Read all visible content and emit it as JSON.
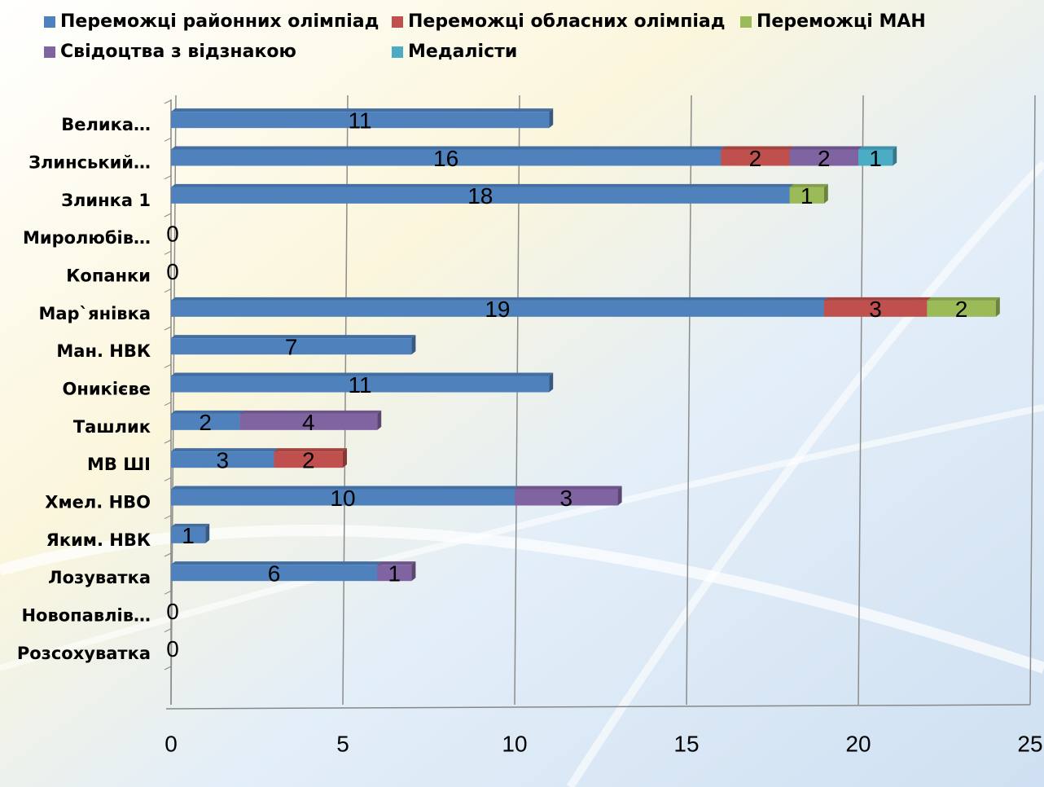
{
  "chart_data": {
    "type": "bar",
    "orientation": "horizontal",
    "stacked": true,
    "categories": [
      "Велика…",
      "Злинський…",
      "Злинка 1",
      "Миролюбів…",
      "Копанки",
      "Мар`янівка",
      "Ман. НВК",
      "Оникієве",
      "Ташлик",
      "МВ ШІ",
      "Хмел. НВО",
      "Яким. НВК",
      "Лозуватка",
      "Новопавлів…",
      "Розсохуватка"
    ],
    "series": [
      {
        "name": "Переможці районних олімпіад",
        "color": "#4f81bd",
        "values": [
          11,
          16,
          18,
          0,
          0,
          19,
          7,
          11,
          2,
          3,
          10,
          1,
          6,
          0,
          0
        ]
      },
      {
        "name": "Переможці обласних олімпіад",
        "color": "#c0504d",
        "values": [
          null,
          2,
          null,
          null,
          null,
          3,
          null,
          null,
          null,
          2,
          null,
          null,
          null,
          null,
          null
        ]
      },
      {
        "name": "Переможці МАН",
        "color": "#9bbb59",
        "values": [
          null,
          null,
          1,
          null,
          null,
          2,
          null,
          null,
          null,
          null,
          null,
          null,
          null,
          null,
          null
        ]
      },
      {
        "name": "Свідоцтва з відзнакою",
        "color": "#8064a2",
        "values": [
          null,
          2,
          null,
          null,
          null,
          null,
          null,
          null,
          4,
          null,
          3,
          null,
          1,
          null,
          null
        ]
      },
      {
        "name": "Медалісти",
        "color": "#4bacc6",
        "values": [
          null,
          1,
          null,
          null,
          null,
          null,
          null,
          null,
          null,
          null,
          null,
          null,
          null,
          null,
          null
        ]
      }
    ],
    "xlim": [
      0,
      25
    ],
    "xticks": [
      0,
      5,
      10,
      15,
      20,
      25
    ],
    "grid": true
  }
}
